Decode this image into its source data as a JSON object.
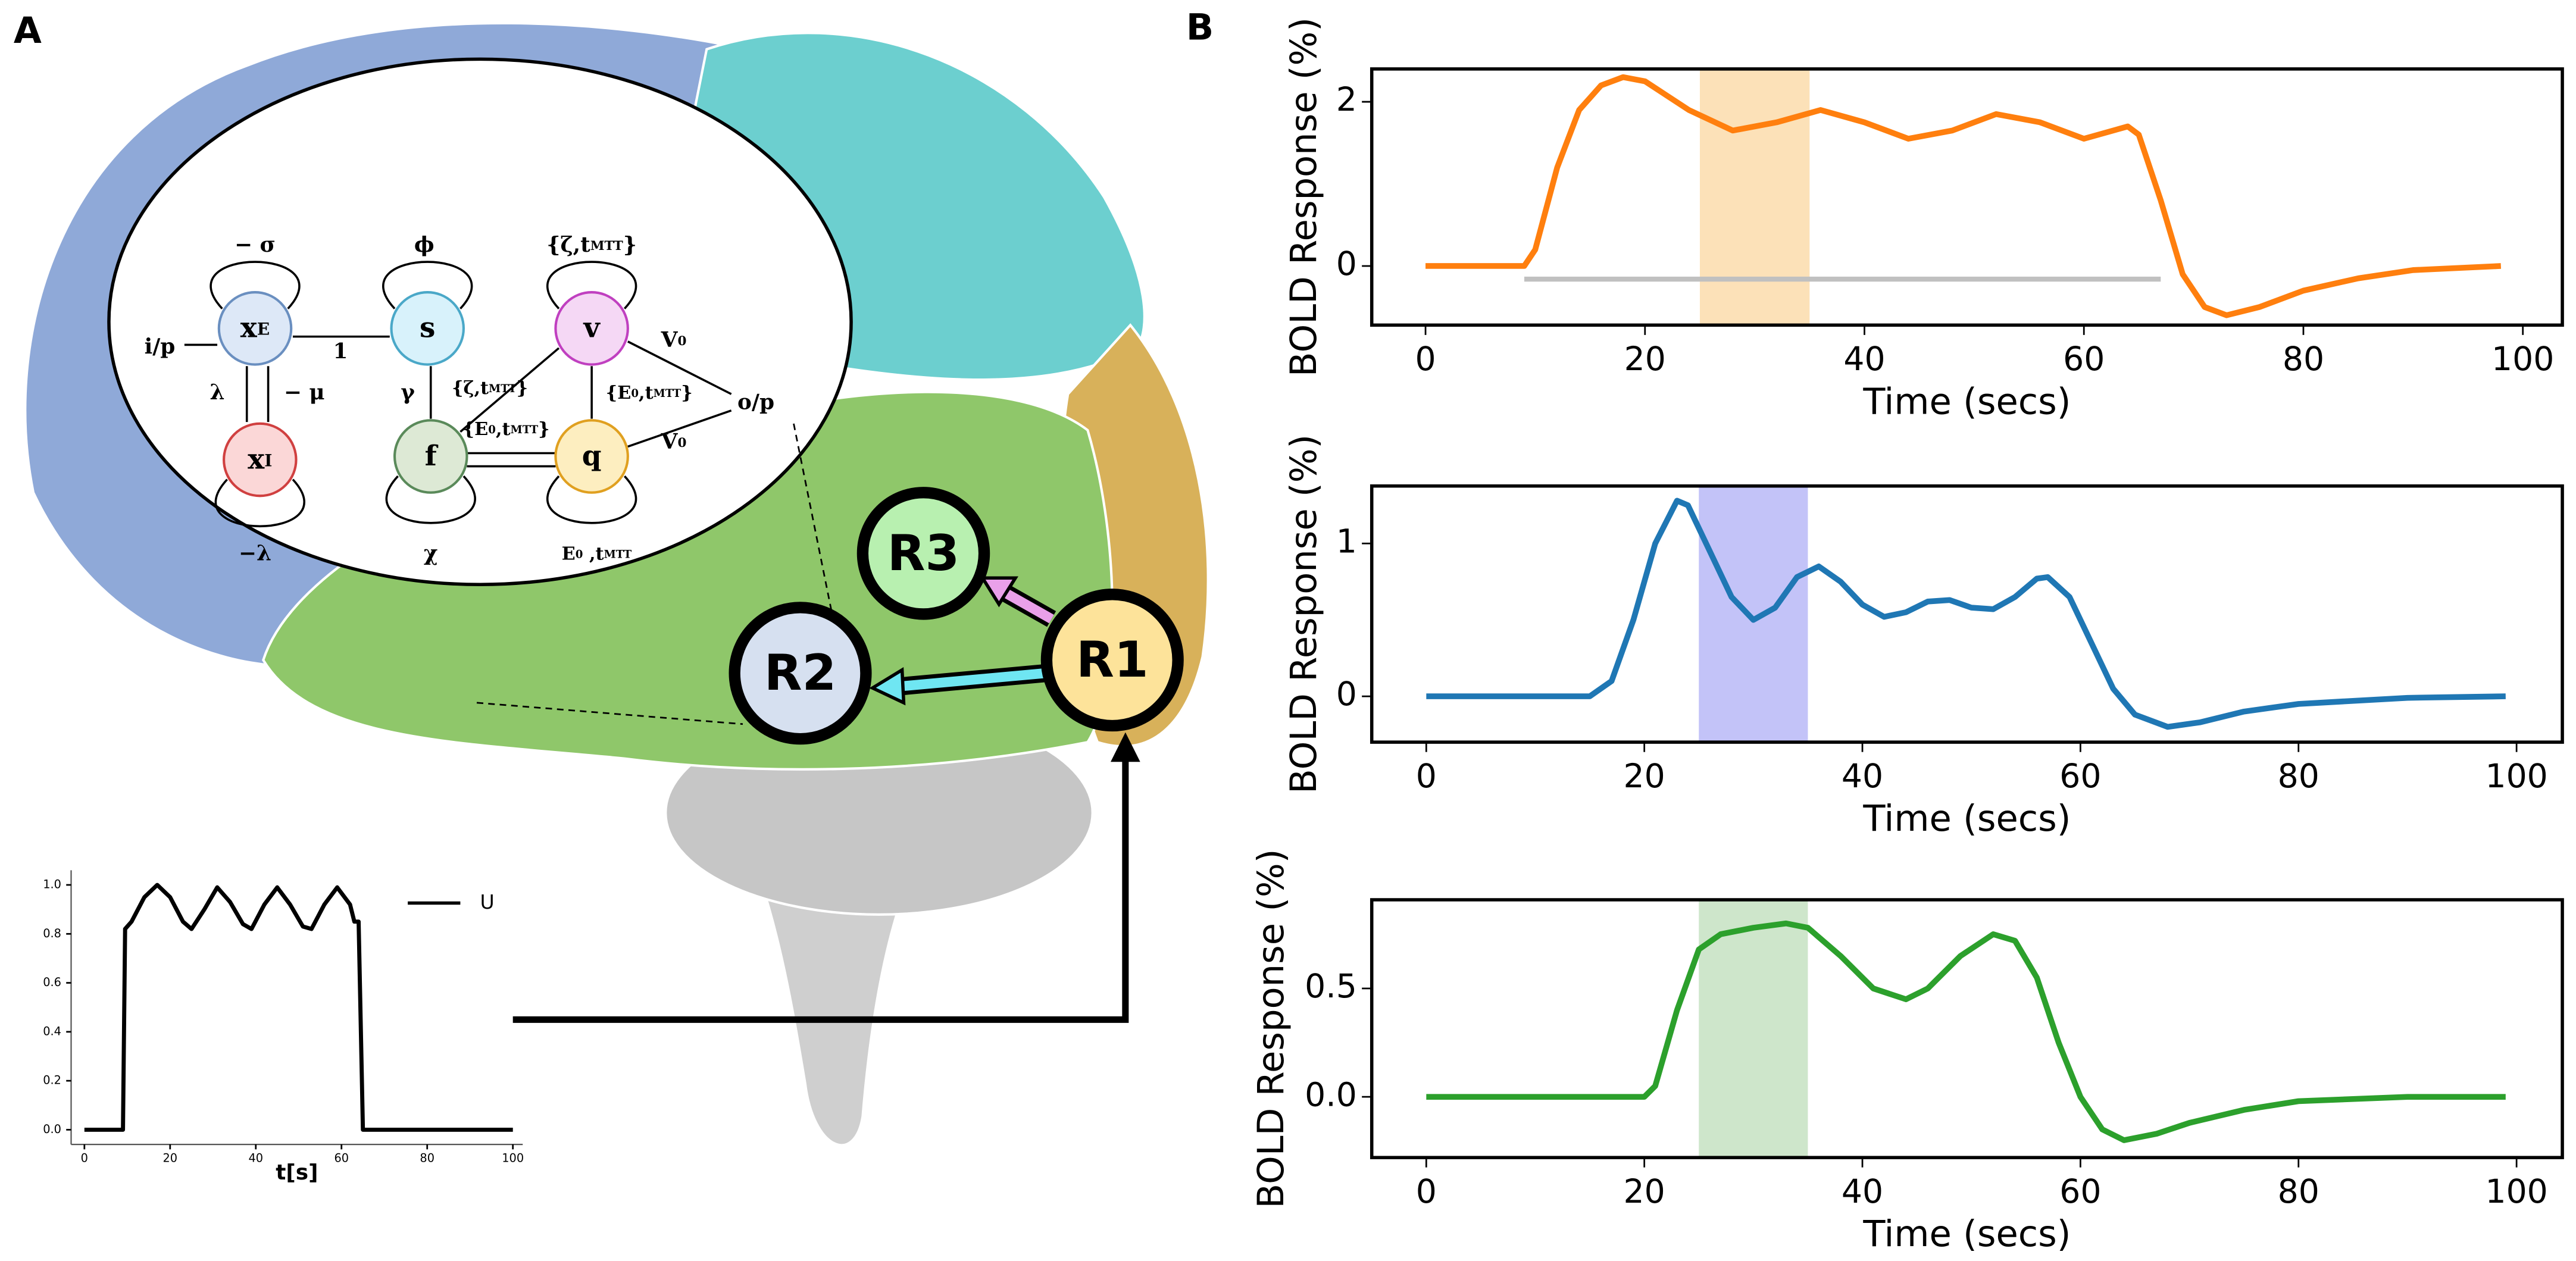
{
  "panel_labels": [
    "A",
    "B"
  ],
  "diagram": {
    "nodes": [
      [
        "x",
        "E"
      ],
      [
        "s"
      ],
      [
        "v"
      ],
      [
        "x",
        "I"
      ],
      [
        "f"
      ],
      [
        "q"
      ]
    ],
    "edge_labels": [
      [
        "− σ"
      ],
      [
        "ϕ"
      ],
      [
        "{ζ,t",
        "MTT",
        "}"
      ],
      [
        "i/p"
      ],
      [
        "1"
      ],
      [
        "λ"
      ],
      [
        "− μ"
      ],
      [
        "γ"
      ],
      [
        "{ζ,t",
        "MTT",
        "}"
      ],
      [
        "V",
        "0"
      ],
      [
        "{E",
        "0",
        ",t",
        "MTT",
        "}"
      ],
      [
        "{E",
        "0",
        ",t",
        "MTT",
        "}"
      ],
      [
        "o/p"
      ],
      [
        "V",
        "0"
      ],
      [
        "−λ"
      ],
      [
        "χ"
      ],
      [
        "E",
        "0",
        " ,t",
        "MTT"
      ]
    ],
    "regions": [
      "R1",
      "R2",
      "R3"
    ]
  },
  "chart_data": [
    {
      "type": "line",
      "xlabel": "Time (secs)",
      "ylabel": "BOLD Response (%)",
      "color": "#ff7f0e",
      "x": [
        0,
        9,
        10,
        12,
        14,
        16,
        18,
        20,
        24,
        28,
        32,
        36,
        40,
        44,
        48,
        52,
        56,
        60,
        64,
        65,
        67,
        69,
        71,
        73,
        76,
        80,
        85,
        90,
        98
      ],
      "values": [
        0,
        0,
        0.2,
        1.2,
        1.9,
        2.2,
        2.3,
        2.25,
        1.9,
        1.65,
        1.75,
        1.9,
        1.75,
        1.55,
        1.65,
        1.85,
        1.75,
        1.55,
        1.7,
        1.6,
        0.8,
        -0.1,
        -0.5,
        -0.6,
        -0.5,
        -0.3,
        -0.15,
        -0.05,
        0
      ],
      "highlight": {
        "x": [
          25,
          35
        ],
        "color": "#fbd49a"
      },
      "reference_line": {
        "x": [
          9,
          67
        ],
        "y": -0.16,
        "color": "#c0c0c0"
      },
      "xlim": [
        -4.9,
        103.6
      ],
      "xticks": [
        0,
        20,
        40,
        60,
        80,
        100
      ],
      "ylim": [
        -0.72,
        2.4
      ],
      "yticks": [
        0,
        2
      ]
    },
    {
      "type": "line",
      "xlabel": "Time (secs)",
      "ylabel": "BOLD Response (%)",
      "color": "#1f77b4",
      "x": [
        0,
        15,
        17,
        19,
        21,
        23,
        24,
        26,
        28,
        30,
        32,
        34,
        36,
        38,
        40,
        42,
        44,
        46,
        48,
        50,
        52,
        54,
        56,
        57,
        59,
        61,
        63,
        65,
        68,
        71,
        75,
        80,
        90,
        99
      ],
      "values": [
        0,
        0,
        0.1,
        0.5,
        1.0,
        1.28,
        1.25,
        0.95,
        0.65,
        0.5,
        0.58,
        0.78,
        0.85,
        0.75,
        0.6,
        0.52,
        0.55,
        0.62,
        0.63,
        0.58,
        0.57,
        0.65,
        0.77,
        0.78,
        0.65,
        0.35,
        0.05,
        -0.12,
        -0.2,
        -0.17,
        -0.1,
        -0.05,
        -0.01,
        0
      ],
      "highlight": {
        "x": [
          25,
          35
        ],
        "color": "#a9a9f5"
      },
      "xlim": [
        -5.0,
        104.2
      ],
      "xticks": [
        0,
        20,
        40,
        60,
        80,
        100
      ],
      "ylim": [
        -0.3,
        1.376
      ],
      "yticks": [
        0,
        1
      ]
    },
    {
      "type": "line",
      "xlabel": "Time (secs)",
      "ylabel": "BOLD Response (%)",
      "color": "#2ca02c",
      "x": [
        0,
        20,
        21,
        23,
        25,
        27,
        30,
        33,
        35,
        38,
        41,
        44,
        46,
        49,
        52,
        54,
        56,
        58,
        60,
        62,
        64,
        67,
        70,
        75,
        80,
        90,
        99
      ],
      "values": [
        0,
        0,
        0.05,
        0.4,
        0.68,
        0.75,
        0.78,
        0.8,
        0.78,
        0.65,
        0.5,
        0.45,
        0.5,
        0.65,
        0.75,
        0.72,
        0.55,
        0.25,
        0.0,
        -0.15,
        -0.2,
        -0.17,
        -0.12,
        -0.06,
        -0.02,
        0,
        0
      ],
      "highlight": {
        "x": [
          25,
          35
        ],
        "color": "#b9dbb5"
      },
      "xlim": [
        -5.0,
        104.2
      ],
      "xticks": [
        0,
        20,
        40,
        60,
        80,
        100
      ],
      "ylim": [
        -0.28,
        0.909
      ],
      "yticks": [
        {
          "value": 0,
          "label": "0.0"
        },
        {
          "value": 0.5,
          "label": "0.5"
        }
      ]
    },
    {
      "type": "line",
      "xlabel": "t[s]",
      "x": [
        0,
        9,
        9.5,
        11,
        14,
        17,
        20,
        23,
        25,
        28,
        31,
        34,
        37,
        39,
        42,
        45,
        48,
        51,
        53,
        56,
        59,
        62,
        63,
        64,
        65,
        100
      ],
      "series": [
        {
          "name": "U",
          "color": "#000000",
          "values": [
            0,
            0,
            0.82,
            0.85,
            0.95,
            1.0,
            0.95,
            0.85,
            0.82,
            0.9,
            0.99,
            0.93,
            0.84,
            0.82,
            0.92,
            0.99,
            0.92,
            0.83,
            0.82,
            0.92,
            0.99,
            0.92,
            0.85,
            0.85,
            0,
            0
          ]
        }
      ],
      "xlim": [
        -3.1,
        102.3
      ],
      "xticks": [
        0,
        20,
        40,
        60,
        80,
        100
      ],
      "ylim": [
        -0.06,
        1.06
      ],
      "yticks": [
        {
          "value": 0,
          "label": "0.0"
        },
        {
          "value": 0.2,
          "label": "0.2"
        },
        {
          "value": 0.4,
          "label": "0.4"
        },
        {
          "value": 0.6,
          "label": "0.6"
        },
        {
          "value": 0.8,
          "label": "0.8"
        },
        {
          "value": 1,
          "label": "1.0"
        }
      ]
    }
  ]
}
